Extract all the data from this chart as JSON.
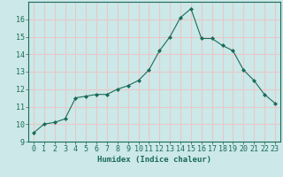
{
  "x": [
    0,
    1,
    2,
    3,
    4,
    5,
    6,
    7,
    8,
    9,
    10,
    11,
    12,
    13,
    14,
    15,
    16,
    17,
    18,
    19,
    20,
    21,
    22,
    23
  ],
  "y": [
    9.5,
    10.0,
    10.1,
    10.3,
    11.5,
    11.6,
    11.7,
    11.7,
    12.0,
    12.2,
    12.5,
    13.1,
    14.2,
    15.0,
    16.1,
    16.6,
    14.9,
    14.9,
    14.5,
    14.2,
    13.1,
    12.5,
    11.7,
    11.2
  ],
  "xlabel": "Humidex (Indice chaleur)",
  "xlim": [
    -0.5,
    23.5
  ],
  "ylim": [
    9,
    17
  ],
  "yticks": [
    9,
    10,
    11,
    12,
    13,
    14,
    15,
    16
  ],
  "xticks": [
    0,
    1,
    2,
    3,
    4,
    5,
    6,
    7,
    8,
    9,
    10,
    11,
    12,
    13,
    14,
    15,
    16,
    17,
    18,
    19,
    20,
    21,
    22,
    23
  ],
  "line_color": "#1a6b5a",
  "marker": "D",
  "marker_size": 2.0,
  "bg_color": "#cce8e8",
  "grid_color": "#e8c8c8",
  "label_fontsize": 6.5,
  "tick_fontsize": 6
}
